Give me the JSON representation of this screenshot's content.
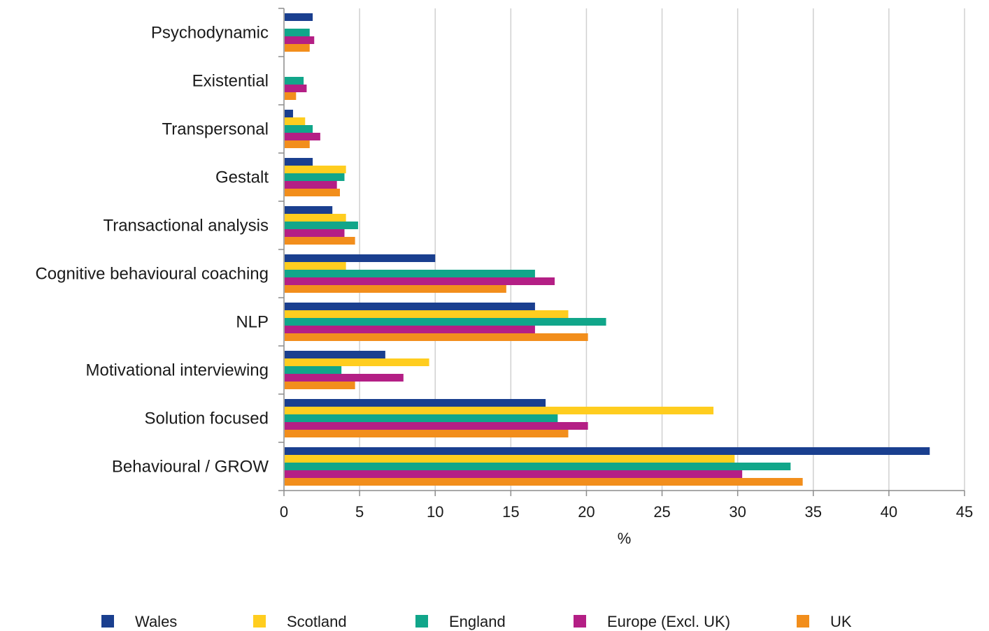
{
  "chart_data": {
    "type": "bar",
    "orientation": "horizontal",
    "categories": [
      "Psychodynamic",
      "Existential",
      "Transpersonal",
      "Gestalt",
      "Transactional analysis",
      "Cognitive behavioural coaching",
      "NLP",
      "Motivational interviewing",
      "Solution focused",
      "Behavioural / GROW"
    ],
    "series": [
      {
        "name": "Wales",
        "color": "#1a3f8f",
        "values": [
          1.9,
          0,
          0.6,
          1.9,
          3.2,
          10.0,
          16.6,
          6.7,
          17.3,
          42.7
        ]
      },
      {
        "name": "Scotland",
        "color": "#ffcd1f",
        "values": [
          0,
          0,
          1.4,
          4.1,
          4.1,
          4.1,
          18.8,
          9.6,
          28.4,
          29.8
        ]
      },
      {
        "name": "England",
        "color": "#11a68a",
        "values": [
          1.7,
          1.3,
          1.9,
          4.0,
          4.9,
          16.6,
          21.3,
          3.8,
          18.1,
          33.5
        ]
      },
      {
        "name": "Europe (Excl. UK)",
        "color": "#b41f85",
        "values": [
          2.0,
          1.5,
          2.4,
          3.5,
          4.0,
          17.9,
          16.6,
          7.9,
          20.1,
          30.3
        ]
      },
      {
        "name": "UK",
        "color": "#f28e1c",
        "values": [
          1.7,
          0.8,
          1.7,
          3.7,
          4.7,
          14.7,
          20.1,
          4.7,
          18.8,
          34.3
        ]
      }
    ],
    "xlabel": "%",
    "xlim": [
      0,
      45
    ],
    "xticks": [
      "0",
      "5",
      "10",
      "15",
      "20",
      "25",
      "30",
      "35",
      "40",
      "45"
    ],
    "grid": "vertical",
    "legend_position": "bottom"
  }
}
